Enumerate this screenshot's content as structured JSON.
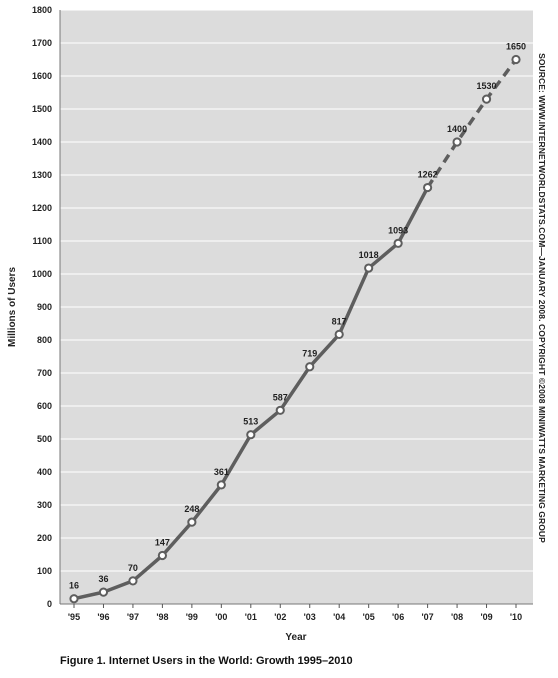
{
  "chart_data": {
    "type": "line",
    "xlabel": "Year",
    "ylabel": "Millions of Users",
    "ylim": [
      0,
      1800
    ],
    "yticks": [
      0,
      100,
      200,
      300,
      400,
      500,
      600,
      700,
      800,
      900,
      1000,
      1100,
      1200,
      1300,
      1400,
      1500,
      1600,
      1700,
      1800
    ],
    "categories": [
      "'95",
      "'96",
      "'97",
      "'98",
      "'99",
      "'00",
      "'01",
      "'02",
      "'03",
      "'04",
      "'05",
      "'06",
      "'07",
      "'08",
      "'09",
      "'10"
    ],
    "values": [
      16,
      36,
      70,
      147,
      248,
      361,
      513,
      587,
      719,
      817,
      1018,
      1093,
      1262,
      1400,
      1530,
      1650
    ],
    "projected_from_index": 12,
    "grid": true,
    "line_style": "solid, dashed for projected years '07–'10",
    "colors": {
      "plot_bg": "#dcdcdc",
      "line": "#5e5e5e",
      "grid": "#ffffff"
    },
    "source": "SOURCE: WWW.INTERNETWORLDSTATS.COM—JANUARY 2008. COPYRIGHT ©2008 MINIWATTS MARKETING GROUP",
    "caption": "Figure 1. Internet Users in the World: Growth 1995–2010"
  }
}
